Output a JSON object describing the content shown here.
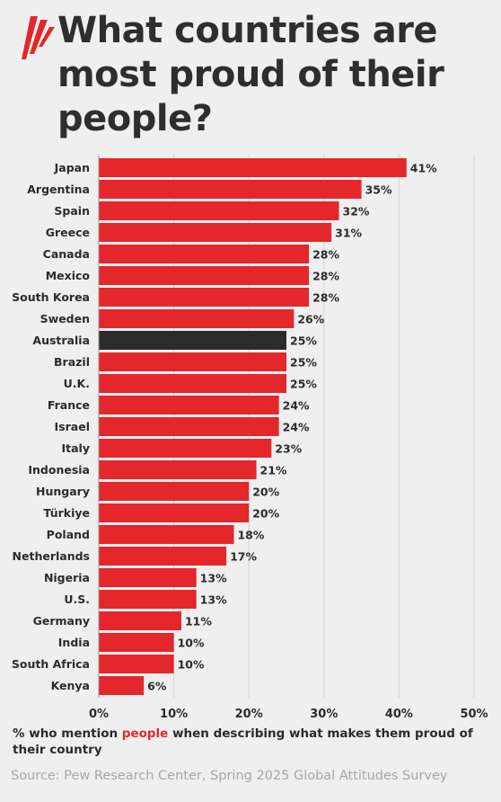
{
  "title": "What countries are most proud of their people?",
  "colors": {
    "bar": "#e3272b",
    "highlight_bar": "#2b2b2b",
    "accent_text": "#e0282a",
    "gridline": "#d4d4d4",
    "background": "#efefef"
  },
  "logo_icon": "sbs-logo",
  "footnote": {
    "before": "% who mention ",
    "highlight": "people",
    "after": " when describing what makes them proud of their country"
  },
  "source": "Source: Pew Research Center, Spring 2025 Global Attitudes Survey",
  "chart_data": {
    "type": "bar",
    "orientation": "horizontal",
    "categories": [
      "Japan",
      "Argentina",
      "Spain",
      "Greece",
      "Canada",
      "Mexico",
      "South Korea",
      "Sweden",
      "Australia",
      "Brazil",
      "U.K.",
      "France",
      "Israel",
      "Italy",
      "Indonesia",
      "Hungary",
      "Türkiye",
      "Poland",
      "Netherlands",
      "Nigeria",
      "U.S.",
      "Germany",
      "India",
      "South Africa",
      "Kenya"
    ],
    "values": [
      41,
      35,
      32,
      31,
      28,
      28,
      28,
      26,
      25,
      25,
      25,
      24,
      24,
      23,
      21,
      20,
      20,
      18,
      17,
      13,
      13,
      11,
      10,
      10,
      6
    ],
    "value_labels": [
      "41%",
      "35%",
      "32%",
      "31%",
      "28%",
      "28%",
      "28%",
      "26%",
      "25%",
      "25%",
      "25%",
      "24%",
      "24%",
      "23%",
      "21%",
      "20%",
      "20%",
      "18%",
      "17%",
      "13%",
      "13%",
      "11%",
      "10%",
      "10%",
      "6%"
    ],
    "highlighted_category": "Australia",
    "xlim": [
      0,
      50
    ],
    "xticks": [
      0,
      10,
      20,
      30,
      40,
      50
    ],
    "xtick_labels": [
      "0%",
      "10%",
      "20%",
      "30%",
      "40%",
      "50%"
    ],
    "grid": "vertical",
    "legend": "none"
  }
}
